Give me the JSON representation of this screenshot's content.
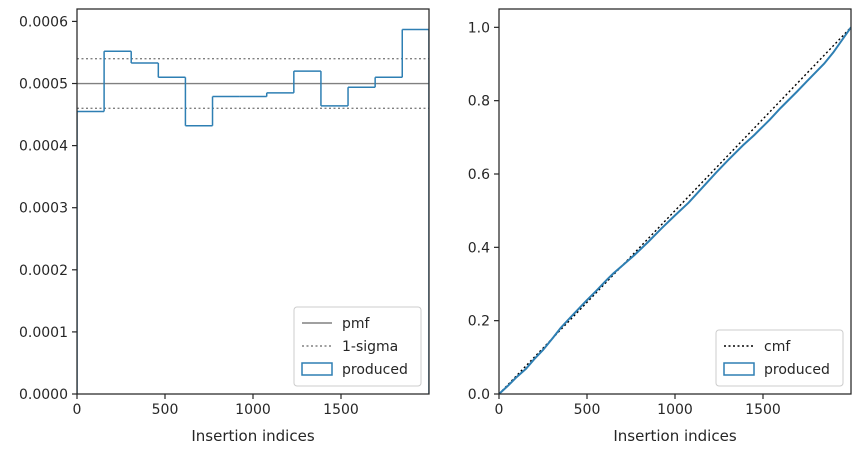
{
  "chart_data": [
    {
      "type": "histogram-step",
      "xlabel": "Insertion indices",
      "ylabel": "",
      "xlim": [
        0,
        2000
      ],
      "ylim": [
        0,
        0.00062
      ],
      "xticks": [
        0,
        500,
        1000,
        1500
      ],
      "xtick_labels": [
        "0",
        "500",
        "1000",
        "1500"
      ],
      "yticks": [
        0,
        0.0001,
        0.0002,
        0.0003,
        0.0004,
        0.0005,
        0.0006
      ],
      "ytick_labels": [
        "0.0000",
        "0.0001",
        "0.0002",
        "0.0003",
        "0.0004",
        "0.0005",
        "0.0006"
      ],
      "legend_position": "lower right",
      "series": [
        {
          "name": "pmf",
          "style": "solid",
          "color": "#808080",
          "y": 0.0005
        },
        {
          "name": "1-sigma",
          "style": "dotted",
          "color": "#808080",
          "y_values": [
            0.00046,
            0.00054
          ]
        },
        {
          "name": "produced",
          "style": "step",
          "color": "#2e7fb3",
          "bin_edges": [
            0,
            154,
            308,
            462,
            616,
            770,
            924,
            1078,
            1232,
            1386,
            1540,
            1694,
            1848,
            2000
          ],
          "values": [
            0.000455,
            0.000552,
            0.000533,
            0.00051,
            0.000432,
            0.000479,
            0.000479,
            0.000485,
            0.00052,
            0.000464,
            0.000494,
            0.00051,
            0.000587
          ]
        }
      ]
    },
    {
      "type": "line",
      "xlabel": "Insertion indices",
      "ylabel": "",
      "xlim": [
        0,
        2000
      ],
      "ylim": [
        0,
        1.05
      ],
      "xticks": [
        0,
        500,
        1000,
        1500
      ],
      "xtick_labels": [
        "0",
        "500",
        "1000",
        "1500"
      ],
      "yticks": [
        0,
        0.2,
        0.4,
        0.6,
        0.8,
        1.0
      ],
      "ytick_labels": [
        "0.0",
        "0.2",
        "0.4",
        "0.6",
        "0.8",
        "1.0"
      ],
      "legend_position": "lower right",
      "series": [
        {
          "name": "cmf",
          "style": "dotted",
          "color": "#000000",
          "x": [
            0,
            2000
          ],
          "y": [
            0,
            1
          ]
        },
        {
          "name": "produced",
          "style": "line",
          "color": "#2e7fb3",
          "x": [
            0,
            50,
            100,
            154,
            200,
            250,
            308,
            350,
            400,
            462,
            500,
            550,
            616,
            650,
            700,
            770,
            850,
            924,
            1000,
            1078,
            1150,
            1232,
            1300,
            1386,
            1450,
            1540,
            1600,
            1694,
            1750,
            1848,
            1900,
            2000
          ],
          "y": [
            0,
            0.022,
            0.046,
            0.069,
            0.095,
            0.12,
            0.154,
            0.18,
            0.206,
            0.237,
            0.256,
            0.28,
            0.313,
            0.329,
            0.35,
            0.379,
            0.416,
            0.452,
            0.487,
            0.522,
            0.56,
            0.603,
            0.637,
            0.678,
            0.706,
            0.749,
            0.78,
            0.825,
            0.853,
            0.901,
            0.932,
            1.0
          ]
        }
      ]
    }
  ]
}
